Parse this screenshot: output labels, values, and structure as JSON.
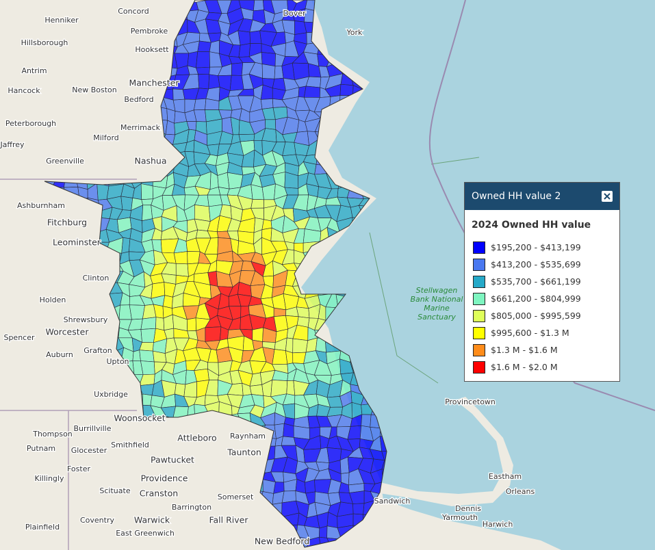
{
  "legend": {
    "title": "Owned HH value 2",
    "subtitle": "2024 Owned HH value",
    "items": [
      {
        "label": "$195,200 - $413,199",
        "color": "#0000ff"
      },
      {
        "label": "$413,200 - $535,699",
        "color": "#4a78f0"
      },
      {
        "label": "$535,700 - $661,199",
        "color": "#26a9c8"
      },
      {
        "label": "$661,200 - $804,999",
        "color": "#7ef5c0"
      },
      {
        "label": "$805,000 - $995,599",
        "color": "#dfff5a"
      },
      {
        "label": "$995,600 - $1.3 M",
        "color": "#ffff00"
      },
      {
        "label": "$1.3 M - $1.6 M",
        "color": "#ff8c1a"
      },
      {
        "label": "$1.6 M - $2.0 M",
        "color": "#ff0000"
      }
    ]
  },
  "places": [
    "Concord",
    "Henniker",
    "Pembroke",
    "Hillsborough",
    "Hooksett",
    "Antrim",
    "Manchester",
    "Hancock",
    "New Boston",
    "Bedford",
    "Peterborough",
    "Merrimack",
    "Milford",
    "Jaffrey",
    "Greenville",
    "Nashua",
    "Ashburnham",
    "Fitchburg",
    "Leominster",
    "Clinton",
    "Holden",
    "Shrewsbury",
    "Worcester",
    "Spencer",
    "Auburn",
    "Grafton",
    "Upton",
    "Uxbridge",
    "Woonsocket",
    "Thompson",
    "Burrillville",
    "Putnam",
    "Glocester",
    "Smithfield",
    "Pawtucket",
    "Foster",
    "Killingly",
    "Providence",
    "Scituate",
    "Cranston",
    "Coventry",
    "Warwick",
    "Plainfield",
    "East Greenwich",
    "Attleboro",
    "Taunton",
    "Raynham",
    "Somerset",
    "Barrington",
    "Fall River",
    "New Bedford",
    "Sandwich",
    "Dennis",
    "Yarmouth",
    "Harwich",
    "Eastham",
    "Orleans",
    "Provincetown",
    "York",
    "Dover"
  ],
  "sanctuary": [
    "Stellwagen",
    "Bank National",
    "Marine",
    "Sanctuary"
  ]
}
